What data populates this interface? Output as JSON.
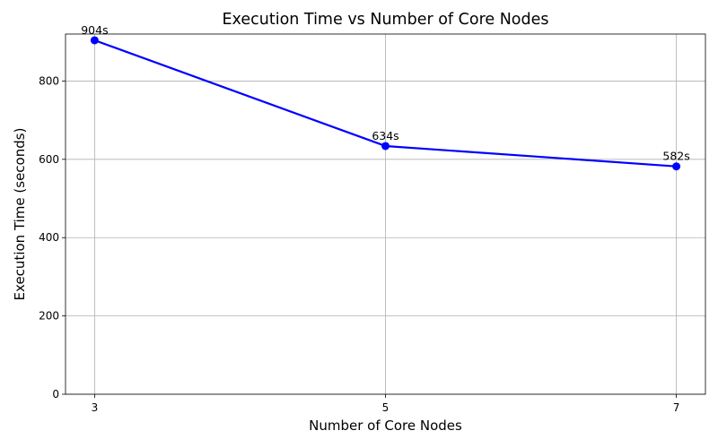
{
  "chart_data": {
    "type": "line",
    "title": "Execution Time vs Number of Core Nodes",
    "xlabel": "Number of Core Nodes",
    "ylabel": "Execution Time (seconds)",
    "x": [
      3,
      5,
      7
    ],
    "x_tick_labels": [
      "3",
      "5",
      "7"
    ],
    "y_ticks": [
      0,
      200,
      400,
      600,
      800
    ],
    "y_tick_labels": [
      "0",
      "200",
      "400",
      "600",
      "800"
    ],
    "series": [
      {
        "values": [
          904,
          634,
          582
        ],
        "data_labels": [
          "904s",
          "634s",
          "582s"
        ],
        "color": "#0000ff",
        "marker": "circle"
      }
    ],
    "xlim": [
      2.8,
      7.2
    ],
    "ylim": [
      0,
      920
    ],
    "grid": true,
    "legend": "none"
  }
}
